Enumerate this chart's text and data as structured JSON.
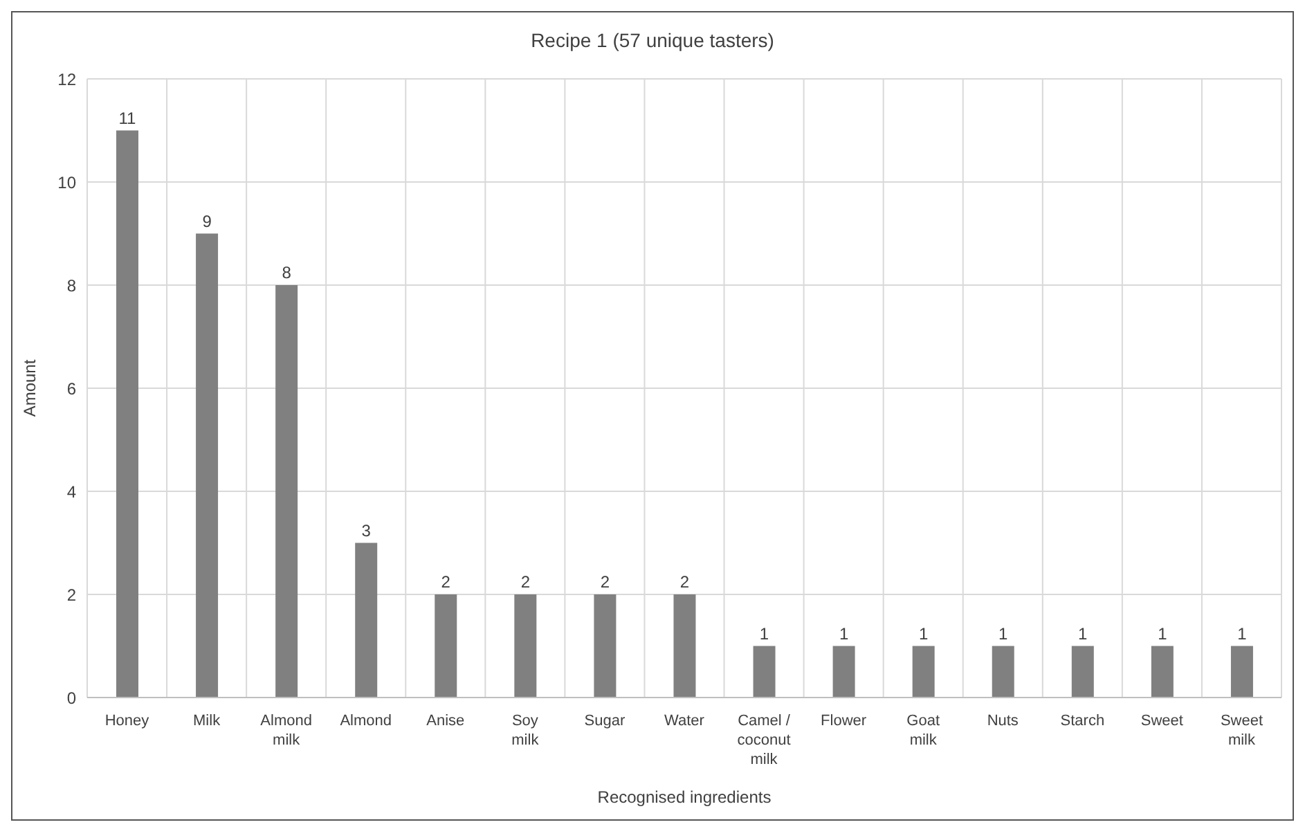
{
  "chart_data": {
    "type": "bar",
    "title": "Recipe 1 (57 unique tasters)",
    "xlabel": "Recognised ingredients",
    "ylabel": "Amount",
    "categories": [
      "Honey",
      "Milk",
      "Almond milk",
      "Almond",
      "Anise",
      "Soy milk",
      "Sugar",
      "Water",
      "Camel / coconut milk",
      "Flower",
      "Goat milk",
      "Nuts",
      "Starch",
      "Sweet",
      "Sweet milk"
    ],
    "values": [
      11,
      9,
      8,
      3,
      2,
      2,
      2,
      2,
      1,
      1,
      1,
      1,
      1,
      1,
      1
    ],
    "color": "#808080",
    "ylim": [
      0,
      12
    ],
    "yticks": [
      0,
      2,
      4,
      6,
      8,
      10,
      12
    ],
    "grid": true,
    "data_labels": true
  }
}
